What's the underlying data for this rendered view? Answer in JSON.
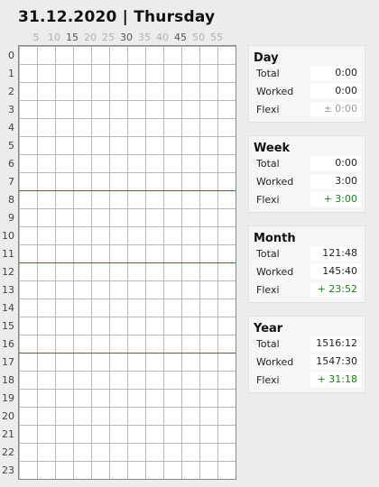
{
  "header": {
    "date_title": "31.12.2020 | Thursday"
  },
  "minute_labels": [
    "5",
    "10",
    "15",
    "20",
    "25",
    "30",
    "35",
    "40",
    "45",
    "50",
    "55"
  ],
  "hour_labels": [
    "0",
    "1",
    "2",
    "3",
    "4",
    "5",
    "6",
    "7",
    "8",
    "9",
    "10",
    "11",
    "12",
    "13",
    "14",
    "15",
    "16",
    "17",
    "18",
    "19",
    "20",
    "21",
    "22",
    "23"
  ],
  "marked_hours": [
    8,
    12,
    17
  ],
  "summary": {
    "day": {
      "title": "Day",
      "rows": [
        {
          "label": "Total",
          "value": "0:00"
        },
        {
          "label": "Worked",
          "value": "0:00"
        },
        {
          "label": "Flexi",
          "value": "± 0:00"
        }
      ]
    },
    "week": {
      "title": "Week",
      "rows": [
        {
          "label": "Total",
          "value": "0:00"
        },
        {
          "label": "Worked",
          "value": "3:00"
        },
        {
          "label": "Flexi",
          "value": "+ 3:00"
        }
      ]
    },
    "month": {
      "title": "Month",
      "rows": [
        {
          "label": "Total",
          "value": "121:48"
        },
        {
          "label": "Worked",
          "value": "145:40"
        },
        {
          "label": "Flexi",
          "value": "+ 23:52"
        }
      ]
    },
    "year": {
      "title": "Year",
      "rows": [
        {
          "label": "Total",
          "value": "1516:12"
        },
        {
          "label": "Worked",
          "value": "1547:30"
        },
        {
          "label": "Flexi",
          "value": "+ 31:18"
        }
      ]
    }
  },
  "colors": {
    "marker_line": "#c0392b",
    "positive_flexi": "#1a7f1a",
    "neutral_flexi": "#9a9a9a"
  }
}
